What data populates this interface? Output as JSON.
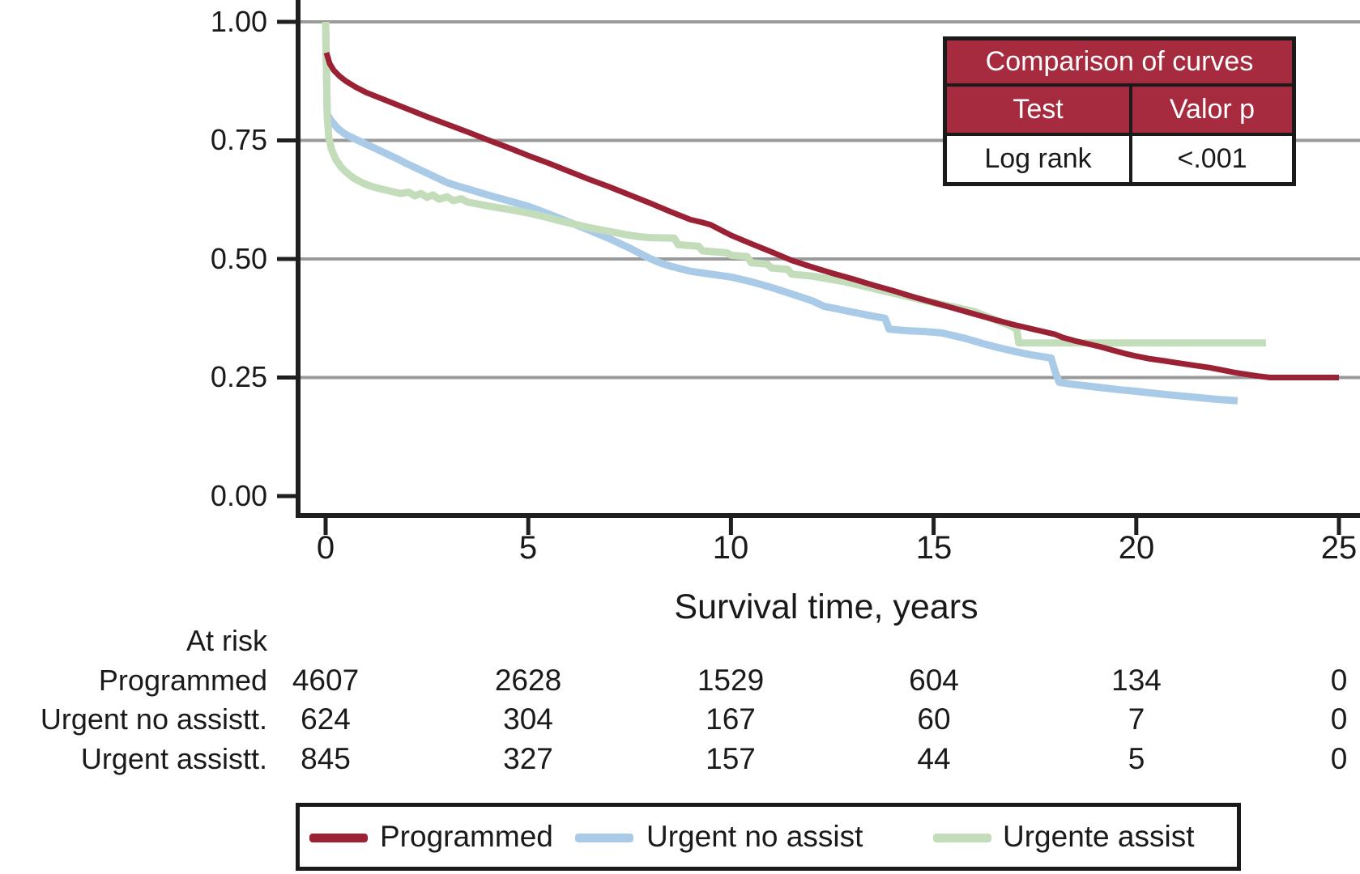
{
  "chart_data": {
    "type": "line",
    "subtype": "kaplan-meier-survival",
    "title": "",
    "xlabel": "Survival time, years",
    "ylabel": "",
    "xlim": [
      0,
      25
    ],
    "ylim": [
      0,
      1
    ],
    "x_ticks": [
      0,
      5,
      10,
      15,
      20,
      25
    ],
    "x_tick_labels": [
      "0",
      "5",
      "10",
      "15",
      "20",
      "25"
    ],
    "y_ticks": [
      1.0,
      0.75,
      0.5,
      0.25,
      0.0
    ],
    "y_tick_labels": [
      "1.00",
      "0.75",
      "0.50",
      "0.25",
      "0.00"
    ],
    "grid_y_values": [
      1.0,
      0.75,
      0.5,
      0.25
    ],
    "grid_on": true,
    "legend_position": "bottom",
    "series": [
      {
        "name": "Programmed",
        "color": "#9b2135",
        "stroke_width": 7,
        "z": 3,
        "points": [
          [
            0.02,
            0.935
          ],
          [
            0.1,
            0.912
          ],
          [
            0.2,
            0.898
          ],
          [
            0.35,
            0.885
          ],
          [
            0.5,
            0.875
          ],
          [
            0.75,
            0.862
          ],
          [
            1,
            0.851
          ],
          [
            1.5,
            0.834
          ],
          [
            2,
            0.817
          ],
          [
            2.5,
            0.8
          ],
          [
            3,
            0.784
          ],
          [
            3.5,
            0.768
          ],
          [
            4,
            0.751
          ],
          [
            4.5,
            0.735
          ],
          [
            5,
            0.718
          ],
          [
            5.5,
            0.702
          ],
          [
            6,
            0.685
          ],
          [
            6.5,
            0.668
          ],
          [
            7,
            0.652
          ],
          [
            7.5,
            0.635
          ],
          [
            8,
            0.618
          ],
          [
            8.5,
            0.6
          ],
          [
            9,
            0.583
          ],
          [
            9.25,
            0.578
          ],
          [
            9.5,
            0.572
          ],
          [
            10,
            0.55
          ],
          [
            10.5,
            0.532
          ],
          [
            11,
            0.515
          ],
          [
            11.5,
            0.497
          ],
          [
            12,
            0.483
          ],
          [
            12.5,
            0.47
          ],
          [
            13,
            0.458
          ],
          [
            13.5,
            0.445
          ],
          [
            14,
            0.433
          ],
          [
            14.5,
            0.42
          ],
          [
            15,
            0.408
          ],
          [
            15.5,
            0.396
          ],
          [
            16,
            0.384
          ],
          [
            16.5,
            0.372
          ],
          [
            17,
            0.361
          ],
          [
            17.3,
            0.355
          ],
          [
            17.6,
            0.349
          ],
          [
            18,
            0.341
          ],
          [
            18.2,
            0.334
          ],
          [
            18.5,
            0.327
          ],
          [
            18.8,
            0.321
          ],
          [
            19.1,
            0.315
          ],
          [
            19.4,
            0.308
          ],
          [
            19.7,
            0.301
          ],
          [
            20,
            0.295
          ],
          [
            20.3,
            0.29
          ],
          [
            20.7,
            0.285
          ],
          [
            21,
            0.281
          ],
          [
            21.4,
            0.276
          ],
          [
            21.8,
            0.271
          ],
          [
            22.1,
            0.266
          ],
          [
            22.4,
            0.261
          ],
          [
            22.7,
            0.257
          ],
          [
            23,
            0.253
          ],
          [
            23.3,
            0.25
          ],
          [
            25,
            0.25
          ]
        ]
      },
      {
        "name": "Urgent no assist",
        "color": "#a9cbe7",
        "stroke_width": 9,
        "z": 1,
        "points": [
          [
            0,
            1.0
          ],
          [
            0.04,
            0.805
          ],
          [
            0.15,
            0.79
          ],
          [
            0.3,
            0.775
          ],
          [
            0.45,
            0.765
          ],
          [
            0.6,
            0.758
          ],
          [
            0.8,
            0.75
          ],
          [
            1,
            0.742
          ],
          [
            1.25,
            0.732
          ],
          [
            1.5,
            0.722
          ],
          [
            1.75,
            0.712
          ],
          [
            2,
            0.701
          ],
          [
            2.25,
            0.691
          ],
          [
            2.5,
            0.681
          ],
          [
            2.75,
            0.671
          ],
          [
            3,
            0.661
          ],
          [
            3.25,
            0.654
          ],
          [
            3.5,
            0.648
          ],
          [
            4,
            0.635
          ],
          [
            4.5,
            0.623
          ],
          [
            5,
            0.611
          ],
          [
            5.25,
            0.603
          ],
          [
            5.5,
            0.595
          ],
          [
            6,
            0.578
          ],
          [
            6.5,
            0.561
          ],
          [
            7,
            0.543
          ],
          [
            7.25,
            0.533
          ],
          [
            7.5,
            0.523
          ],
          [
            7.75,
            0.512
          ],
          [
            8,
            0.501
          ],
          [
            8.25,
            0.492
          ],
          [
            8.5,
            0.485
          ],
          [
            9,
            0.474
          ],
          [
            9.5,
            0.468
          ],
          [
            10,
            0.462
          ],
          [
            10.5,
            0.452
          ],
          [
            11,
            0.44
          ],
          [
            11.5,
            0.426
          ],
          [
            12,
            0.412
          ],
          [
            12.3,
            0.4
          ],
          [
            12.6,
            0.395
          ],
          [
            13,
            0.388
          ],
          [
            13.4,
            0.381
          ],
          [
            13.8,
            0.375
          ],
          [
            13.9,
            0.352
          ],
          [
            14.3,
            0.349
          ],
          [
            14.8,
            0.347
          ],
          [
            15.2,
            0.344
          ],
          [
            15.5,
            0.338
          ],
          [
            15.8,
            0.332
          ],
          [
            16.2,
            0.322
          ],
          [
            16.6,
            0.313
          ],
          [
            17,
            0.305
          ],
          [
            17.4,
            0.298
          ],
          [
            17.9,
            0.291
          ],
          [
            18,
            0.262
          ],
          [
            18.1,
            0.24
          ],
          [
            18.4,
            0.236
          ],
          [
            18.8,
            0.232
          ],
          [
            19.2,
            0.228
          ],
          [
            19.6,
            0.224
          ],
          [
            20,
            0.221
          ],
          [
            20.5,
            0.216
          ],
          [
            21,
            0.212
          ],
          [
            21.5,
            0.208
          ],
          [
            22,
            0.204
          ],
          [
            22.5,
            0.201
          ]
        ]
      },
      {
        "name": "Urgente assist",
        "color": "#c3ddbb",
        "stroke_width": 9,
        "z": 2,
        "points": [
          [
            0,
            1.0
          ],
          [
            0.04,
            0.8
          ],
          [
            0.08,
            0.755
          ],
          [
            0.15,
            0.73
          ],
          [
            0.25,
            0.71
          ],
          [
            0.4,
            0.692
          ],
          [
            0.55,
            0.68
          ],
          [
            0.7,
            0.67
          ],
          [
            0.9,
            0.661
          ],
          [
            1.1,
            0.654
          ],
          [
            1.35,
            0.648
          ],
          [
            1.6,
            0.643
          ],
          [
            1.85,
            0.638
          ],
          [
            2.05,
            0.641
          ],
          [
            2.2,
            0.633
          ],
          [
            2.35,
            0.638
          ],
          [
            2.5,
            0.63
          ],
          [
            2.65,
            0.635
          ],
          [
            2.8,
            0.626
          ],
          [
            3,
            0.631
          ],
          [
            3.15,
            0.623
          ],
          [
            3.35,
            0.627
          ],
          [
            3.5,
            0.62
          ],
          [
            3.75,
            0.616
          ],
          [
            4,
            0.612
          ],
          [
            4.25,
            0.608
          ],
          [
            4.5,
            0.605
          ],
          [
            4.75,
            0.601
          ],
          [
            5,
            0.597
          ],
          [
            5.25,
            0.592
          ],
          [
            5.5,
            0.587
          ],
          [
            5.75,
            0.581
          ],
          [
            6,
            0.576
          ],
          [
            6.25,
            0.571
          ],
          [
            6.5,
            0.566
          ],
          [
            6.75,
            0.562
          ],
          [
            7,
            0.558
          ],
          [
            7.25,
            0.554
          ],
          [
            7.5,
            0.55
          ],
          [
            7.75,
            0.547
          ],
          [
            8,
            0.545
          ],
          [
            8.6,
            0.544
          ],
          [
            8.7,
            0.53
          ],
          [
            9.2,
            0.527
          ],
          [
            9.3,
            0.517
          ],
          [
            9.9,
            0.513
          ],
          [
            10,
            0.508
          ],
          [
            10.4,
            0.505
          ],
          [
            10.5,
            0.492
          ],
          [
            10.9,
            0.489
          ],
          [
            11,
            0.481
          ],
          [
            11.4,
            0.478
          ],
          [
            11.5,
            0.468
          ],
          [
            12,
            0.464
          ],
          [
            12.4,
            0.458
          ],
          [
            12.8,
            0.452
          ],
          [
            13.2,
            0.444
          ],
          [
            13.6,
            0.436
          ],
          [
            14,
            0.428
          ],
          [
            14.4,
            0.42
          ],
          [
            14.8,
            0.412
          ],
          [
            15.2,
            0.404
          ],
          [
            15.6,
            0.397
          ],
          [
            16,
            0.389
          ],
          [
            16.3,
            0.379
          ],
          [
            16.6,
            0.369
          ],
          [
            16.85,
            0.361
          ],
          [
            17.05,
            0.352
          ],
          [
            17.1,
            0.323
          ],
          [
            23.2,
            0.323
          ]
        ]
      }
    ]
  },
  "comparison_table": {
    "title": "Comparison of curves",
    "col1_header": "Test",
    "col2_header": "Valor p",
    "rows": [
      {
        "test": "Log rank",
        "p": "<.001"
      }
    ],
    "header_bg": "#a62b3e",
    "header_text_color": "#ffffff"
  },
  "at_risk": {
    "header": "At risk",
    "rows": [
      {
        "label": "Programmed",
        "values": [
          "4607",
          "2628",
          "1529",
          "604",
          "134",
          "0"
        ]
      },
      {
        "label": "Urgent no assistt.",
        "values": [
          "624",
          "304",
          "167",
          "60",
          "7",
          "0"
        ]
      },
      {
        "label": "Urgent assistt.",
        "values": [
          "845",
          "327",
          "157",
          "44",
          "5",
          "0"
        ]
      }
    ]
  },
  "legend": {
    "items": [
      {
        "label": "Programmed",
        "color": "#9b2135"
      },
      {
        "label": "Urgent no assist",
        "color": "#a9cbe7"
      },
      {
        "label": "Urgente assist",
        "color": "#c3ddbb"
      }
    ]
  },
  "colors": {
    "gridline": "#9a9a9a",
    "axis": "#1f1f1f",
    "text": "#1a1a1a",
    "background": "#ffffff"
  }
}
